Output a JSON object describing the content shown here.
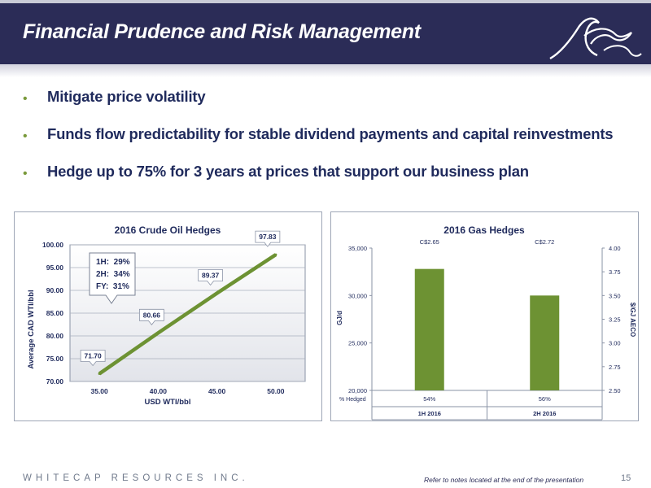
{
  "title": "Financial Prudence and Risk Management",
  "bullets": [
    "Mitigate price volatility",
    "Funds flow predictability for stable dividend payments and capital reinvestments",
    "Hedge up to 75% for 3 years at prices that support our business plan"
  ],
  "colors": {
    "header": "#2b2c57",
    "accent": "#7a9a3c",
    "text_blue": "#1f2a5c",
    "bar": "#6d9233"
  },
  "chart_data": [
    {
      "type": "line",
      "title": "2016 Crude Oil Hedges",
      "xlabel": "USD WTI/bbl",
      "ylabel": "Average CAD WTI/bbl",
      "xlim": [
        32.5,
        52.5
      ],
      "ylim": [
        70,
        100
      ],
      "x_ticks": [
        "35.00",
        "40.00",
        "45.00",
        "50.00"
      ],
      "y_ticks": [
        "70.00",
        "75.00",
        "80.00",
        "85.00",
        "90.00",
        "95.00",
        "100.00"
      ],
      "x": [
        35,
        40,
        45,
        50
      ],
      "y": [
        71.7,
        80.66,
        89.37,
        97.83
      ],
      "data_labels": [
        "71.70",
        "80.66",
        "89.37",
        "97.83"
      ],
      "grid": true,
      "annotation": [
        "1H:  29%",
        "2H:  34%",
        "FY:  31%"
      ]
    },
    {
      "type": "bar",
      "title": "2016 Gas Hedges",
      "categories": [
        "1H 2016",
        "2H 2016"
      ],
      "values": [
        32800,
        30000
      ],
      "ylabel": "GJ/d",
      "ylim": [
        20000,
        35000
      ],
      "y_ticks": [
        "20,000",
        "25,000",
        "30,000",
        "35,000"
      ],
      "y2label": "$/GJ AECO",
      "y2lim": [
        2.5,
        4.0
      ],
      "y2_ticks": [
        "2.50",
        "2.75",
        "3.00",
        "3.25",
        "3.50",
        "3.75",
        "4.00"
      ],
      "prices": [
        "C$2.65",
        "C$2.72"
      ],
      "pct_hedged_label": "% Hedged",
      "pct_hedged": [
        "54%",
        "56%"
      ],
      "grid": false
    }
  ],
  "footer": {
    "company": "WHITECAP RESOURCES INC.",
    "note": "Refer to notes located at the end of the presentation",
    "page": "15"
  }
}
